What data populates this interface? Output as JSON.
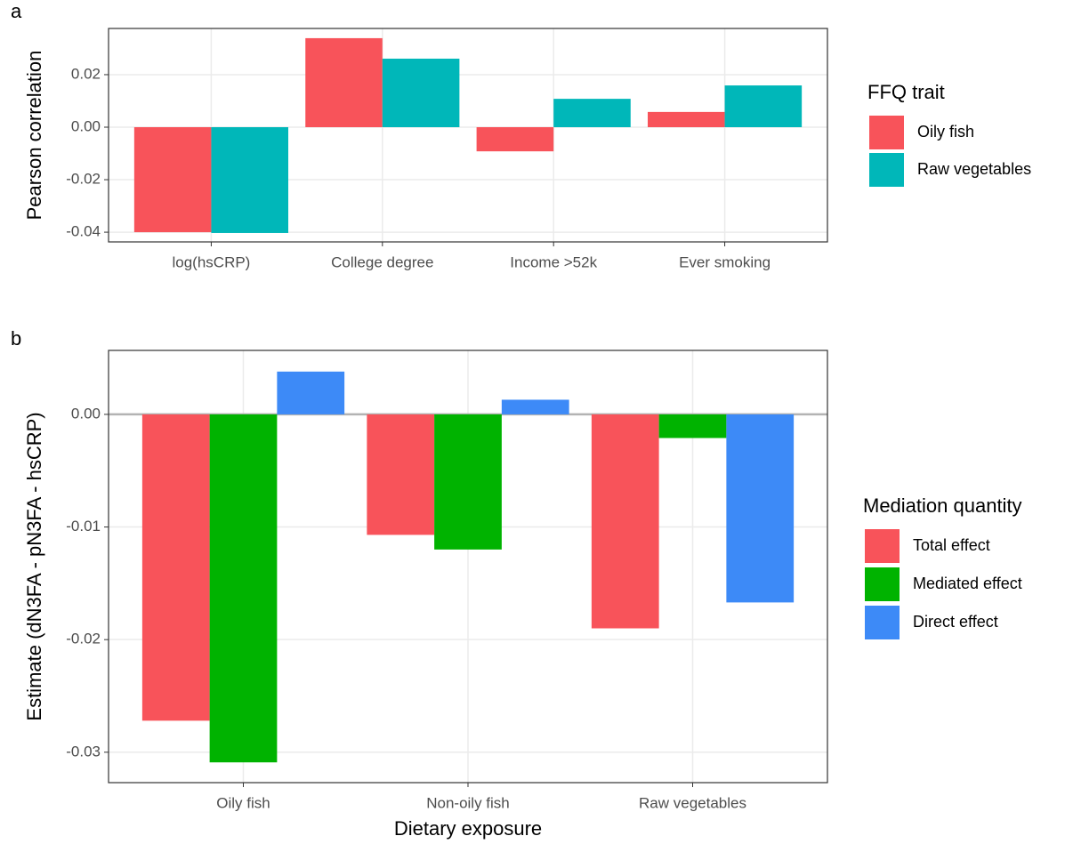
{
  "chart_data": [
    {
      "type": "bar",
      "panel": "a",
      "y_label": "Pearson correlation",
      "categories": [
        "log(hsCRP)",
        "College degree",
        "Income >52k",
        "Ever smoking"
      ],
      "legend_title": "FFQ trait",
      "series": [
        {
          "name": "Oily fish",
          "color": "#f8535a",
          "values": [
            -0.04,
            0.0339,
            -0.0092,
            0.0058
          ]
        },
        {
          "name": "Raw vegetables",
          "color": "#00b7b9",
          "values": [
            -0.0403,
            0.0261,
            0.0108,
            0.0159
          ]
        }
      ],
      "ylim": [
        -0.0437,
        0.0376
      ],
      "yticks": [
        -0.04,
        -0.02,
        {
          "value": 0,
          "label": "0.00"
        },
        0.02
      ],
      "grid": true
    },
    {
      "type": "bar",
      "panel": "b",
      "y_label": "Estimate (dN3FA - pN3FA - hsCRP)",
      "x_label": "Dietary exposure",
      "categories": [
        "Oily fish",
        "Non-oily fish",
        "Raw vegetables"
      ],
      "legend_title": "Mediation quantity",
      "series": [
        {
          "name": "Total effect",
          "color": "#f8535a",
          "values": [
            -0.0272,
            -0.0107,
            -0.019
          ]
        },
        {
          "name": "Mediated effect",
          "color": "#00b300",
          "values": [
            -0.0309,
            -0.012,
            -0.0021
          ]
        },
        {
          "name": "Direct effect",
          "color": "#3d8af7",
          "values": [
            0.0038,
            0.0013,
            -0.0167
          ]
        }
      ],
      "ylim": [
        -0.0327,
        0.00568
      ],
      "yticks": [
        -0.03,
        -0.02,
        -0.01,
        {
          "value": 0,
          "label": "0.00"
        }
      ],
      "hline": 0,
      "grid": true
    }
  ]
}
